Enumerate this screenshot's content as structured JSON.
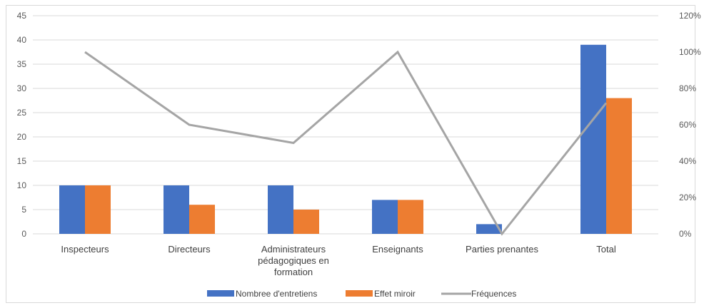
{
  "chart_data": {
    "type": "bar",
    "categories": [
      [
        "Inspecteurs"
      ],
      [
        "Directeurs"
      ],
      [
        "Administrateurs",
        "pédagogiques en",
        "formation"
      ],
      [
        "Enseignants"
      ],
      [
        "Parties prenantes"
      ],
      [
        "Total"
      ]
    ],
    "series": [
      {
        "name": "Nombree d'entretiens",
        "type": "bar",
        "axis": "left",
        "color": "#4472C4",
        "values": [
          10,
          10,
          10,
          7,
          2,
          39
        ]
      },
      {
        "name": "Effet miroir",
        "type": "bar",
        "axis": "left",
        "color": "#ED7D31",
        "values": [
          10,
          6,
          5,
          7,
          0,
          28
        ]
      },
      {
        "name": "Fréquences",
        "type": "line",
        "axis": "right",
        "color": "#A5A5A5",
        "values": [
          1.0,
          0.6,
          0.5,
          1.0,
          0.0,
          0.72
        ]
      }
    ],
    "y_left": {
      "min": 0,
      "max": 45,
      "step": 5,
      "ticks": [
        "0",
        "5",
        "10",
        "15",
        "20",
        "25",
        "30",
        "35",
        "40",
        "45"
      ]
    },
    "y_right": {
      "min": 0,
      "max": 1.2,
      "step": 0.2,
      "ticks": [
        "0%",
        "20%",
        "40%",
        "60%",
        "80%",
        "100%",
        "120%"
      ]
    },
    "grid": true,
    "legend_position": "bottom"
  }
}
